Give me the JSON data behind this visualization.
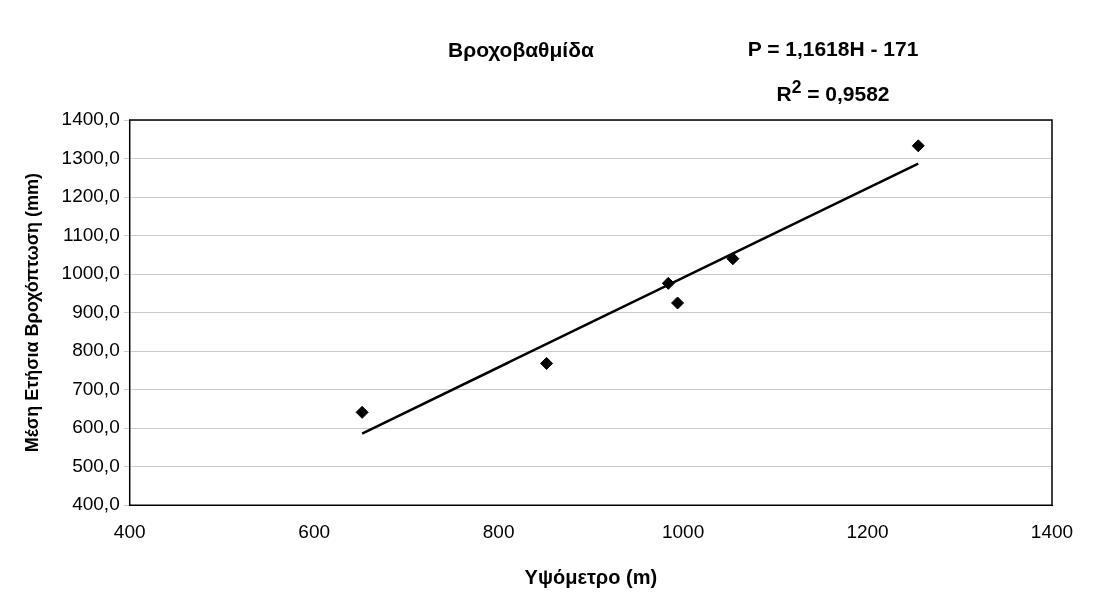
{
  "chart_data": {
    "type": "scatter",
    "title": "Βροχοβαθμίδα",
    "xlabel": "Υψόμετρο (m)",
    "ylabel": "Μέση Ετήσια Βροχόπτωση (mm)",
    "annotations": [
      "P = 1,1618H - 171",
      "R$^{2}$ = 0,9582"
    ],
    "x": [
      652,
      852,
      984,
      994,
      1054,
      1255
    ],
    "series": [
      {
        "color": "#000000",
        "marker": "diamond",
        "values": [
          641,
          768,
          976,
          925,
          1040,
          1333
        ]
      },
      {
        "type": "line",
        "color": "#000000",
        "x": [
          652,
          1255
        ],
        "values": [
          586,
          1287
        ]
      }
    ],
    "xlim": [
      400,
      1400
    ],
    "xticks": [
      400,
      600,
      800,
      1000,
      1200,
      1400
    ],
    "ylim": [
      400,
      1400
    ],
    "yticks": [
      {
        "value": 400,
        "label": "400,0"
      },
      {
        "value": 500,
        "label": "500,0"
      },
      {
        "value": 600,
        "label": "600,0"
      },
      {
        "value": 700,
        "label": "700,0"
      },
      {
        "value": 800,
        "label": "800,0"
      },
      {
        "value": 900,
        "label": "900,0"
      },
      {
        "value": 1000,
        "label": "1000,0"
      },
      {
        "value": 1100,
        "label": "1100,0"
      },
      {
        "value": 1200,
        "label": "1200,0"
      },
      {
        "value": 1300,
        "label": "1300,0"
      },
      {
        "value": 1400,
        "label": "1400,0"
      }
    ],
    "grid": "y",
    "legend": false,
    "line_style": "solid"
  }
}
